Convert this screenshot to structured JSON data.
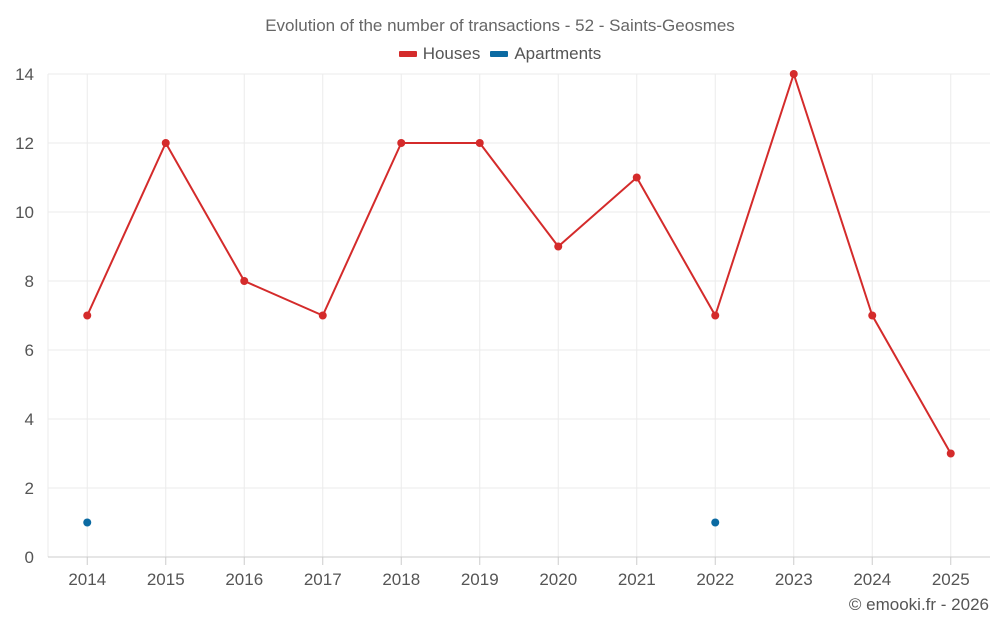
{
  "chart_data": {
    "type": "line",
    "title": "Evolution of the number of transactions - 52 - Saints-Geosmes",
    "xlabel": "",
    "ylabel": "",
    "categories": [
      "2014",
      "2015",
      "2016",
      "2017",
      "2018",
      "2019",
      "2020",
      "2021",
      "2022",
      "2023",
      "2024",
      "2025"
    ],
    "ylim": [
      0,
      14
    ],
    "yticks": [
      0,
      2,
      4,
      6,
      8,
      10,
      12,
      14
    ],
    "grid": true,
    "legend_position": "top-center",
    "series": [
      {
        "name": "Houses",
        "color": "#d42b2b",
        "values": [
          7,
          12,
          8,
          7,
          12,
          12,
          9,
          11,
          7,
          14,
          7,
          3
        ],
        "line": true
      },
      {
        "name": "Apartments",
        "color": "#0b6aa2",
        "values": [
          1,
          null,
          null,
          null,
          null,
          null,
          null,
          null,
          1,
          null,
          null,
          null
        ],
        "line": false
      }
    ]
  },
  "footer": {
    "credit": "© emooki.fr - 2026"
  }
}
